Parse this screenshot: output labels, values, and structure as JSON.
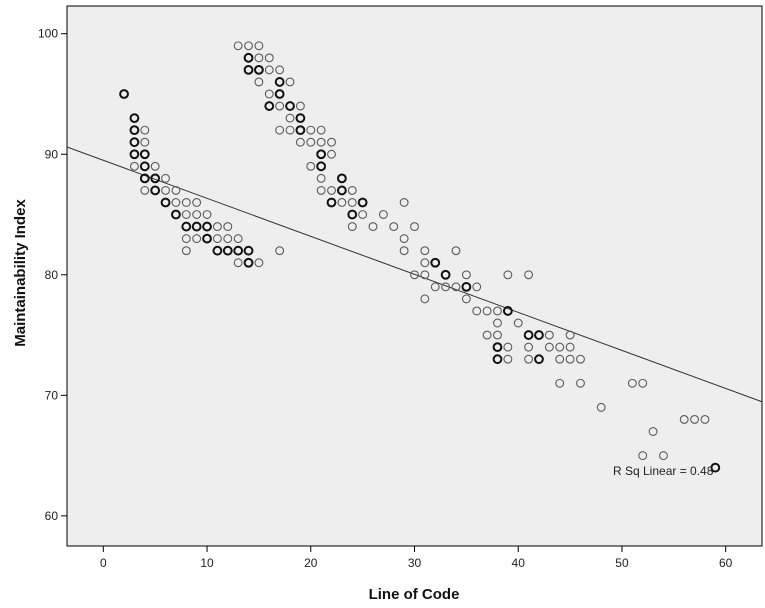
{
  "chart_data": {
    "type": "scatter",
    "title": "",
    "xlabel": "Line of Code",
    "ylabel": "Maintainability Index",
    "xlim": [
      -3.5,
      63.5
    ],
    "ylim": [
      57.5,
      102.3
    ],
    "x_ticks": [
      0,
      10,
      20,
      30,
      40,
      50,
      60
    ],
    "y_ticks": [
      60,
      70,
      80,
      90,
      100
    ],
    "x_tick_labels": [
      "0",
      "10",
      "20",
      "30",
      "40",
      "50",
      "60"
    ],
    "y_tick_labels": [
      "60",
      "70",
      "80",
      "90",
      "100"
    ],
    "grid": false,
    "plot_background": "#eeeeee",
    "marker_color": "#333333",
    "line_color": "#333333",
    "fit_line": {
      "intercept": 89.5,
      "slope": -0.3155
    },
    "annotation": "R Sq Linear = 0.48",
    "points": [
      [
        2,
        95
      ],
      [
        3,
        93
      ],
      [
        3,
        92
      ],
      [
        3,
        91
      ],
      [
        3,
        90
      ],
      [
        3,
        89
      ],
      [
        4,
        92
      ],
      [
        4,
        91
      ],
      [
        4,
        90
      ],
      [
        4,
        89
      ],
      [
        4,
        88
      ],
      [
        4,
        87
      ],
      [
        5,
        89
      ],
      [
        5,
        88
      ],
      [
        5,
        87
      ],
      [
        6,
        88
      ],
      [
        6,
        87
      ],
      [
        6,
        86
      ],
      [
        7,
        87
      ],
      [
        7,
        86
      ],
      [
        7,
        85
      ],
      [
        8,
        86
      ],
      [
        8,
        85
      ],
      [
        8,
        84
      ],
      [
        8,
        83
      ],
      [
        8,
        82
      ],
      [
        9,
        86
      ],
      [
        9,
        85
      ],
      [
        9,
        84
      ],
      [
        9,
        83
      ],
      [
        10,
        85
      ],
      [
        10,
        84
      ],
      [
        10,
        83
      ],
      [
        11,
        84
      ],
      [
        11,
        83
      ],
      [
        11,
        82
      ],
      [
        12,
        84
      ],
      [
        12,
        83
      ],
      [
        12,
        82
      ],
      [
        13,
        83
      ],
      [
        13,
        82
      ],
      [
        13,
        81
      ],
      [
        14,
        82
      ],
      [
        14,
        81
      ],
      [
        15,
        81
      ],
      [
        13,
        99
      ],
      [
        14,
        99
      ],
      [
        14,
        98
      ],
      [
        14,
        97
      ],
      [
        15,
        99
      ],
      [
        15,
        98
      ],
      [
        15,
        97
      ],
      [
        15,
        96
      ],
      [
        16,
        98
      ],
      [
        16,
        97
      ],
      [
        16,
        95
      ],
      [
        16,
        94
      ],
      [
        17,
        97
      ],
      [
        17,
        96
      ],
      [
        17,
        95
      ],
      [
        17,
        94
      ],
      [
        17,
        92
      ],
      [
        17,
        82
      ],
      [
        18,
        96
      ],
      [
        18,
        94
      ],
      [
        18,
        93
      ],
      [
        18,
        92
      ],
      [
        19,
        94
      ],
      [
        19,
        93
      ],
      [
        19,
        92
      ],
      [
        19,
        91
      ],
      [
        20,
        92
      ],
      [
        20,
        91
      ],
      [
        20,
        89
      ],
      [
        21,
        92
      ],
      [
        21,
        91
      ],
      [
        21,
        90
      ],
      [
        21,
        89
      ],
      [
        21,
        88
      ],
      [
        21,
        87
      ],
      [
        22,
        91
      ],
      [
        22,
        90
      ],
      [
        22,
        87
      ],
      [
        22,
        86
      ],
      [
        23,
        88
      ],
      [
        23,
        87
      ],
      [
        23,
        86
      ],
      [
        24,
        87
      ],
      [
        24,
        86
      ],
      [
        24,
        85
      ],
      [
        24,
        84
      ],
      [
        25,
        86
      ],
      [
        25,
        85
      ],
      [
        26,
        84
      ],
      [
        27,
        85
      ],
      [
        28,
        84
      ],
      [
        29,
        86
      ],
      [
        29,
        83
      ],
      [
        29,
        82
      ],
      [
        30,
        84
      ],
      [
        30,
        80
      ],
      [
        31,
        82
      ],
      [
        31,
        81
      ],
      [
        31,
        80
      ],
      [
        31,
        78
      ],
      [
        32,
        81
      ],
      [
        32,
        79
      ],
      [
        33,
        80
      ],
      [
        33,
        79
      ],
      [
        34,
        82
      ],
      [
        34,
        79
      ],
      [
        35,
        80
      ],
      [
        35,
        79
      ],
      [
        35,
        78
      ],
      [
        36,
        79
      ],
      [
        36,
        77
      ],
      [
        37,
        77
      ],
      [
        37,
        75
      ],
      [
        38,
        77
      ],
      [
        38,
        76
      ],
      [
        38,
        75
      ],
      [
        38,
        74
      ],
      [
        38,
        73
      ],
      [
        39,
        80
      ],
      [
        39,
        77
      ],
      [
        39,
        74
      ],
      [
        39,
        73
      ],
      [
        40,
        76
      ],
      [
        41,
        80
      ],
      [
        41,
        75
      ],
      [
        41,
        74
      ],
      [
        41,
        73
      ],
      [
        42,
        75
      ],
      [
        42,
        73
      ],
      [
        43,
        75
      ],
      [
        43,
        74
      ],
      [
        44,
        74
      ],
      [
        44,
        73
      ],
      [
        44,
        71
      ],
      [
        45,
        75
      ],
      [
        45,
        74
      ],
      [
        45,
        73
      ],
      [
        46,
        73
      ],
      [
        46,
        71
      ],
      [
        48,
        69
      ],
      [
        51,
        71
      ],
      [
        52,
        71
      ],
      [
        52,
        65
      ],
      [
        53,
        67
      ],
      [
        54,
        65
      ],
      [
        56,
        68
      ],
      [
        57,
        68
      ],
      [
        58,
        68
      ],
      [
        59,
        64
      ]
    ],
    "bold_points": [
      [
        2,
        95
      ],
      [
        3,
        93
      ],
      [
        3,
        92
      ],
      [
        3,
        91
      ],
      [
        3,
        90
      ],
      [
        4,
        90
      ],
      [
        4,
        89
      ],
      [
        4,
        88
      ],
      [
        5,
        88
      ],
      [
        5,
        87
      ],
      [
        6,
        86
      ],
      [
        7,
        85
      ],
      [
        8,
        84
      ],
      [
        9,
        84
      ],
      [
        10,
        84
      ],
      [
        10,
        83
      ],
      [
        11,
        82
      ],
      [
        12,
        82
      ],
      [
        13,
        82
      ],
      [
        14,
        82
      ],
      [
        14,
        81
      ],
      [
        14,
        98
      ],
      [
        14,
        97
      ],
      [
        15,
        97
      ],
      [
        16,
        94
      ],
      [
        17,
        96
      ],
      [
        17,
        95
      ],
      [
        18,
        94
      ],
      [
        19,
        92
      ],
      [
        19,
        93
      ],
      [
        21,
        90
      ],
      [
        21,
        89
      ],
      [
        22,
        86
      ],
      [
        23,
        87
      ],
      [
        23,
        88
      ],
      [
        24,
        85
      ],
      [
        25,
        86
      ],
      [
        32,
        81
      ],
      [
        33,
        80
      ],
      [
        35,
        79
      ],
      [
        38,
        74
      ],
      [
        38,
        73
      ],
      [
        39,
        77
      ],
      [
        41,
        75
      ],
      [
        42,
        75
      ],
      [
        42,
        73
      ],
      [
        59,
        64
      ]
    ]
  }
}
